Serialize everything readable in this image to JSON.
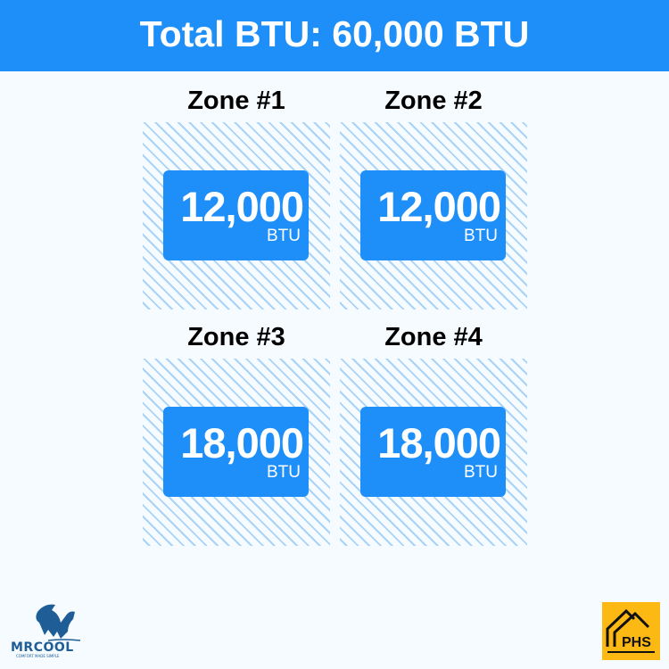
{
  "header": {
    "title": "Total BTU: 60,000 BTU"
  },
  "zones": [
    {
      "label": "Zone #1",
      "value": "12,000",
      "unit": "BTU"
    },
    {
      "label": "Zone #2",
      "value": "12,000",
      "unit": "BTU"
    },
    {
      "label": "Zone #3",
      "value": "18,000",
      "unit": "BTU"
    },
    {
      "label": "Zone #4",
      "value": "18,000",
      "unit": "BTU"
    }
  ],
  "logos": {
    "left": "MRCOOL",
    "left_tagline": "COMFORT MADE SIMPLE",
    "right": "PHS"
  },
  "colors": {
    "accent": "#1e8ff9",
    "hatch": "#a9d3f7",
    "phs": "#fdb913"
  }
}
